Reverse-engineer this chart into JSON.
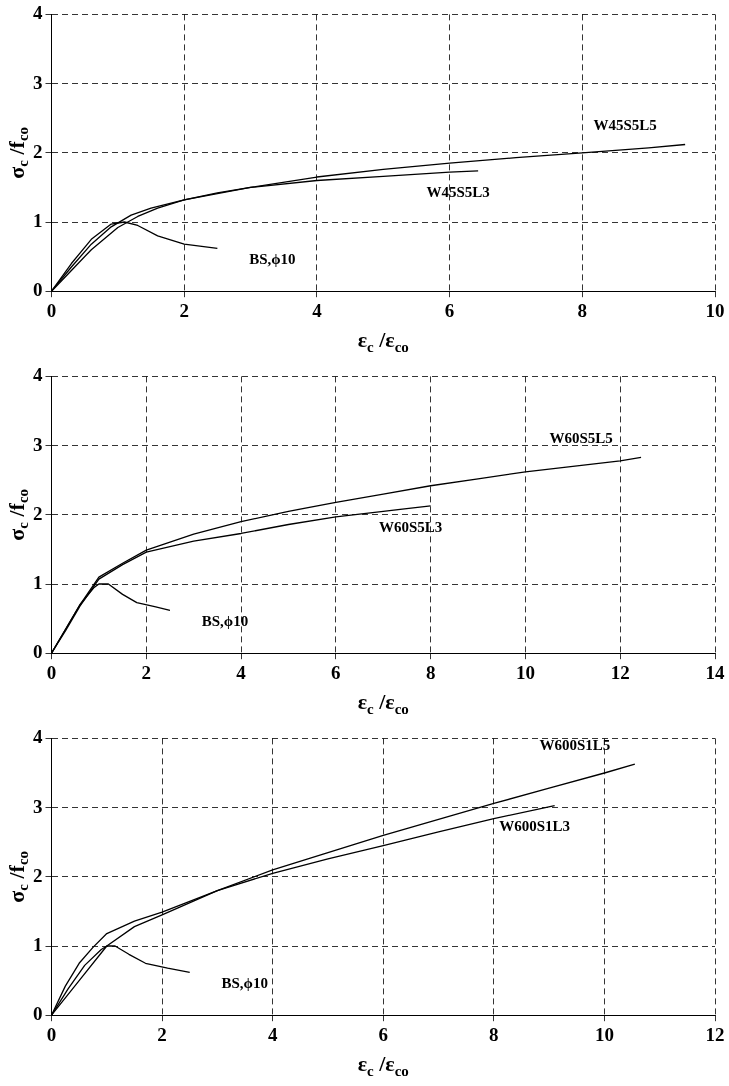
{
  "chart_data": [
    {
      "type": "line",
      "xlabel": "ε$_{c}$ /ε$_{co}$",
      "ylabel": "σ$_{c}$ /f$_{co}$",
      "xlim": [
        0,
        10
      ],
      "xticks": [
        0,
        2,
        4,
        6,
        8,
        10
      ],
      "ylim": [
        0,
        4
      ],
      "yticks": [
        0,
        1,
        2,
        3,
        4
      ],
      "grid": true,
      "legend": false,
      "marker": "none",
      "line_style": "solid",
      "series": [
        {
          "name": "W45S5L5",
          "color": "#000000",
          "x": [
            0,
            0.3,
            0.6,
            0.9,
            1.2,
            1.5,
            2,
            3,
            4,
            5,
            6,
            7,
            8,
            9,
            9.55
          ],
          "values": [
            0,
            0.35,
            0.68,
            0.93,
            1.1,
            1.2,
            1.32,
            1.5,
            1.65,
            1.76,
            1.85,
            1.93,
            2.0,
            2.07,
            2.12
          ]
        },
        {
          "name": "W45S5L3",
          "color": "#000000",
          "x": [
            0,
            0.3,
            0.6,
            1,
            1.3,
            1.6,
            2,
            2.5,
            3,
            4,
            5,
            6,
            6.43
          ],
          "values": [
            0,
            0.3,
            0.6,
            0.92,
            1.08,
            1.2,
            1.32,
            1.42,
            1.5,
            1.6,
            1.66,
            1.72,
            1.74
          ]
        },
        {
          "name": "BS,ϕ10",
          "color": "#000000",
          "x": [
            0,
            0.3,
            0.6,
            0.9,
            1.1,
            1.3,
            1.6,
            2,
            2.5
          ],
          "values": [
            0,
            0.4,
            0.75,
            0.97,
            1.0,
            0.95,
            0.8,
            0.68,
            0.62
          ]
        }
      ]
    },
    {
      "type": "line",
      "xlabel": "ε$_{c}$ /ε$_{co}$",
      "ylabel": "σ$_{c}$ /f$_{co}$",
      "xlim": [
        0,
        14
      ],
      "xticks": [
        0,
        2,
        4,
        6,
        8,
        10,
        12,
        14
      ],
      "ylim": [
        0,
        4
      ],
      "yticks": [
        0,
        1,
        2,
        3,
        4
      ],
      "grid": true,
      "legend": false,
      "marker": "none",
      "line_style": "solid",
      "series": [
        {
          "name": "W60S5L5",
          "color": "#000000",
          "x": [
            0,
            0.3,
            0.6,
            1,
            1.5,
            2,
            3,
            4,
            5,
            6,
            7,
            8,
            9,
            10,
            11,
            12,
            12.44
          ],
          "values": [
            0,
            0.35,
            0.7,
            1.1,
            1.3,
            1.49,
            1.72,
            1.9,
            2.05,
            2.18,
            2.3,
            2.42,
            2.52,
            2.62,
            2.7,
            2.78,
            2.83
          ]
        },
        {
          "name": "W60S5L3",
          "color": "#000000",
          "x": [
            0,
            0.3,
            0.6,
            1,
            1.5,
            2,
            3,
            4,
            5,
            6,
            7,
            8
          ],
          "values": [
            0,
            0.33,
            0.68,
            1.07,
            1.28,
            1.46,
            1.62,
            1.73,
            1.86,
            1.97,
            2.05,
            2.13
          ]
        },
        {
          "name": "BS,ϕ10",
          "color": "#000000",
          "x": [
            0,
            0.3,
            0.6,
            0.9,
            1.0,
            1.2,
            1.5,
            1.8,
            2.2,
            2.5
          ],
          "values": [
            0,
            0.35,
            0.7,
            0.95,
            1.0,
            1.0,
            0.85,
            0.73,
            0.67,
            0.62
          ]
        }
      ]
    },
    {
      "type": "line",
      "xlabel": "ε$_{c}$ /ε$_{co}$",
      "ylabel": "σ$_{c}$ /f$_{co}$",
      "xlim": [
        0,
        12
      ],
      "xticks": [
        0,
        2,
        4,
        6,
        8,
        10,
        12
      ],
      "ylim": [
        0,
        4
      ],
      "yticks": [
        0,
        1,
        2,
        3,
        4
      ],
      "grid": true,
      "legend": false,
      "marker": "none",
      "line_style": "solid",
      "series": [
        {
          "name": "W600S1L5",
          "color": "#000000",
          "x": [
            0,
            0.25,
            0.5,
            0.75,
            1,
            1.5,
            2,
            3,
            4,
            5,
            6,
            7,
            8,
            9,
            10,
            10.55
          ],
          "values": [
            0,
            0.42,
            0.75,
            0.98,
            1.18,
            1.36,
            1.49,
            1.8,
            2.1,
            2.35,
            2.6,
            2.83,
            3.06,
            3.28,
            3.5,
            3.63
          ]
        },
        {
          "name": "W600S1L3",
          "color": "#000000",
          "x": [
            0,
            0.5,
            1,
            1.5,
            2,
            3,
            4,
            5,
            6,
            7,
            8,
            9.1
          ],
          "values": [
            0,
            0.5,
            1.0,
            1.28,
            1.45,
            1.8,
            2.05,
            2.26,
            2.45,
            2.65,
            2.84,
            3.03
          ]
        },
        {
          "name": "BS,ϕ10",
          "color": "#000000",
          "x": [
            0,
            0.3,
            0.6,
            0.9,
            1.0,
            1.15,
            1.4,
            1.7,
            2.1,
            2.5
          ],
          "values": [
            0,
            0.38,
            0.72,
            0.95,
            1.0,
            1.0,
            0.88,
            0.75,
            0.68,
            0.62
          ]
        }
      ]
    }
  ]
}
